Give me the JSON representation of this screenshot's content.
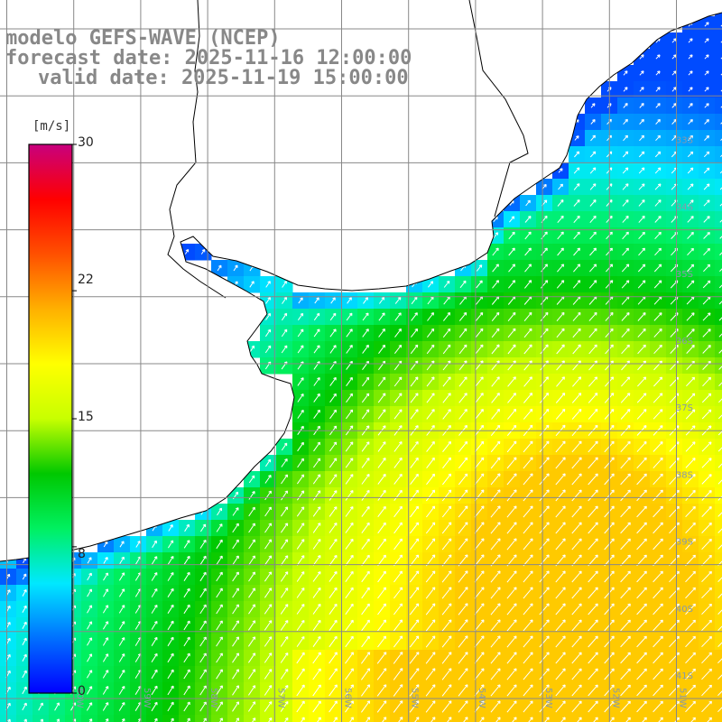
{
  "title": {
    "line1": "modelo GEFS-WAVE (NCEP)",
    "line2": "forecast date: 2025-11-16 12:00:00",
    "line3": "valid date: 2025-11-19 15:00:00"
  },
  "colorbar": {
    "units": "[m/s]",
    "ticks": [
      {
        "value": 30,
        "label": "30"
      },
      {
        "value": 22,
        "label": "22"
      },
      {
        "value": 15,
        "label": "15"
      },
      {
        "value": 8,
        "label": "8"
      },
      {
        "value": 0,
        "label": "0"
      }
    ],
    "range": [
      0,
      30
    ],
    "colors": [
      "#0000ff",
      "#0070ff",
      "#00e8ff",
      "#00f060",
      "#00c800",
      "#c8ff00",
      "#ffff00",
      "#ffb000",
      "#ff5000",
      "#ff0000",
      "#c8007e"
    ]
  },
  "map": {
    "lon_labels": [
      "60W",
      "59W",
      "58W",
      "57W",
      "56W",
      "55W",
      "54W",
      "53W",
      "52W",
      "51W"
    ],
    "lat_labels": [
      "33S",
      "34S",
      "35S",
      "36S",
      "37S",
      "38S",
      "39S",
      "40S",
      "41S"
    ],
    "land_color": "#ffffff",
    "grid_color": "#888888"
  }
}
